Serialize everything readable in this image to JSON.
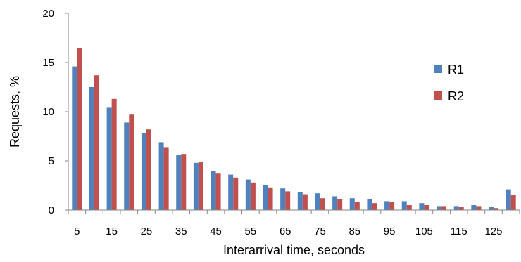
{
  "chart_data": {
    "type": "bar",
    "title": "",
    "xlabel": "Interarrival time, seconds",
    "ylabel": "Requests, %",
    "ylim": [
      0,
      20
    ],
    "yticks": [
      0,
      5,
      10,
      15,
      20
    ],
    "categories": [
      "5",
      "10",
      "15",
      "20",
      "25",
      "30",
      "35",
      "40",
      "45",
      "50",
      "55",
      "60",
      "65",
      "70",
      "75",
      "80",
      "85",
      "90",
      "95",
      "100",
      "105",
      "110",
      "115",
      "120",
      "125",
      "130"
    ],
    "xtick_labels": [
      "5",
      "15",
      "25",
      "35",
      "45",
      "55",
      "65",
      "75",
      "85",
      "95",
      "105",
      "115",
      "125"
    ],
    "series": [
      {
        "name": "R1",
        "color": "#4F81BD",
        "values": [
          14.6,
          12.5,
          10.4,
          8.9,
          7.8,
          6.9,
          5.6,
          4.8,
          4.0,
          3.6,
          3.1,
          2.5,
          2.2,
          1.8,
          1.7,
          1.4,
          1.2,
          1.1,
          0.9,
          0.9,
          0.7,
          0.4,
          0.4,
          0.5,
          0.3,
          2.1
        ]
      },
      {
        "name": "R2",
        "color": "#C0504D",
        "values": [
          16.5,
          13.7,
          11.3,
          9.7,
          8.2,
          6.4,
          5.7,
          4.9,
          3.7,
          3.3,
          2.8,
          2.3,
          1.9,
          1.6,
          1.2,
          1.1,
          0.8,
          0.7,
          0.8,
          0.5,
          0.5,
          0.4,
          0.3,
          0.4,
          0.2,
          1.5
        ]
      }
    ],
    "legend": "right",
    "grid": false
  }
}
